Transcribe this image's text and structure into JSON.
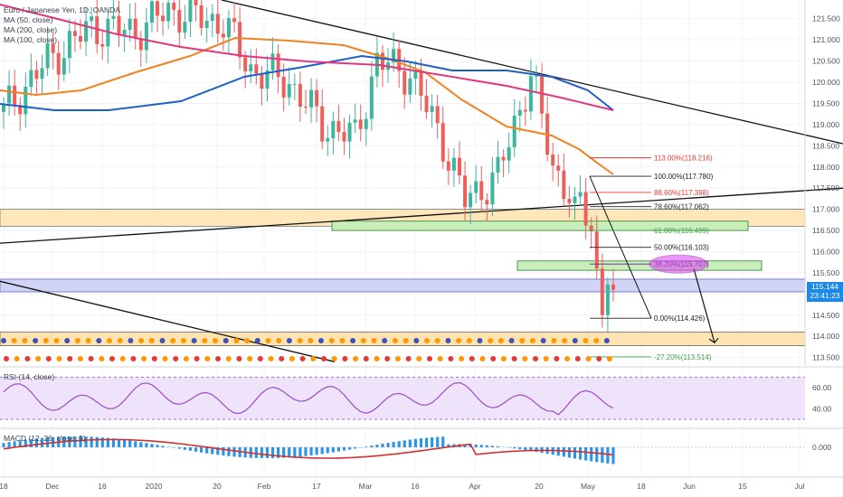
{
  "header": {
    "symbol_title": "Euro / Japanese Yen, 1D, OANDA",
    "indicators": [
      "MA (50, close)",
      "MA (200, close)",
      "MA (100, close)"
    ]
  },
  "colors": {
    "up": "#3fb59e",
    "down": "#ee5f5b",
    "ma50": "#f0821f",
    "ma100": "#1f5fc9",
    "ma200": "#e0387f",
    "fib_red": "#e53935",
    "fib_green": "#43a047",
    "rsi_fill": "#efe3fb",
    "rsi_line": "#9c4cc4",
    "macd_line": "#d32f2f",
    "macd_hist": "#2d95e6",
    "current_price": "#1e88e5"
  },
  "chart_data": [
    {
      "type": "candlestick",
      "title": "Euro / Japanese Yen, 1D, OANDA",
      "ylim": [
        113.3,
        121.9
      ],
      "y_ticks": [
        113.5,
        114.0,
        114.5,
        115.0,
        115.5,
        116.0,
        116.5,
        117.0,
        117.5,
        118.0,
        118.5,
        119.0,
        119.5,
        120.0,
        120.5,
        121.0,
        121.5
      ],
      "x_tick_labels": [
        "18",
        "Dec",
        "16",
        "2020",
        "20",
        "Feb",
        "17",
        "Mar",
        "16",
        "Apr",
        "20",
        "May",
        "18",
        "Jun",
        "15",
        "Jul"
      ],
      "current_price": "115.144",
      "countdown": "23:41:23",
      "fib_levels": [
        {
          "label": "113.00%(118.216)",
          "value": 118.216,
          "color": "red"
        },
        {
          "label": "100.00%(117.780)",
          "value": 117.78,
          "color": "black"
        },
        {
          "label": "88.60%(117.398)",
          "value": 117.398,
          "color": "red"
        },
        {
          "label": "78.60%(117.062)",
          "value": 117.062,
          "color": "black"
        },
        {
          "label": "61.80%(116.499)",
          "value": 116.499,
          "color": "green"
        },
        {
          "label": "50.00%(116.103)",
          "value": 116.103,
          "color": "black"
        },
        {
          "label": "38.20%(115.707)",
          "value": 115.707,
          "color": "purple"
        },
        {
          "label": "0.00%(114.426)",
          "value": 114.426,
          "color": "black"
        },
        {
          "label": "-27.20%(113.514)",
          "value": 113.514,
          "color": "green"
        }
      ],
      "series": [
        {
          "name": "MA (50, close)"
        },
        {
          "name": "MA (100, close)"
        },
        {
          "name": "MA (200, close)"
        }
      ]
    },
    {
      "type": "line",
      "title": "RSI (14, close)",
      "y_ticks": [
        40.0,
        60.0
      ],
      "ylim": [
        25,
        78
      ]
    },
    {
      "type": "bar",
      "title": "MACD (12, 26, close, 9)",
      "y_ticks": [
        0.0
      ],
      "ylim": [
        -0.9,
        0.55
      ]
    }
  ],
  "rsi": {
    "title": "RSI (14, close)",
    "tick_high": "60.00",
    "tick_low": "40.00"
  },
  "macd": {
    "title": "MACD (12, 26, close, 9)",
    "tick_zero": "0.000"
  }
}
